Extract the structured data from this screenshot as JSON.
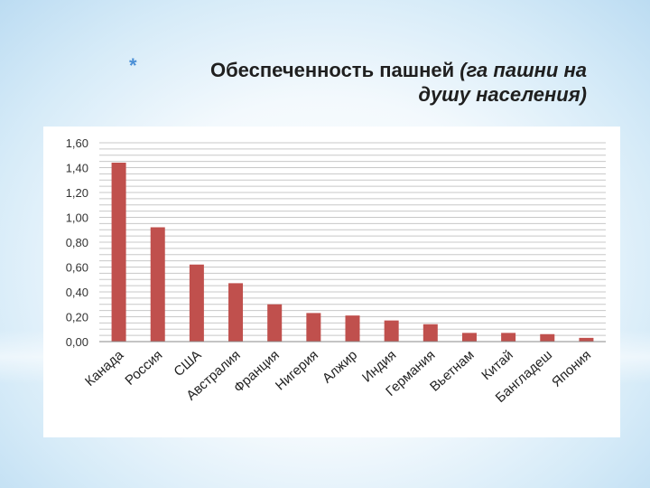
{
  "title": {
    "bullet": "*",
    "main": "Обеспеченность пашней",
    "paren": "(га пашни на душу населения)"
  },
  "colors": {
    "bar": "#c0504d",
    "grid": "#c8c8c8",
    "bullet": "#4a8fd6"
  },
  "chart_data": {
    "type": "bar",
    "title": "Обеспеченность пашней (га пашни на душу населения)",
    "categories": [
      "Канада",
      "Россия",
      "США",
      "Австралия",
      "Франция",
      "Нигерия",
      "Алжир",
      "Индия",
      "Германия",
      "Вьетнам",
      "Китай",
      "Бангладеш",
      "Япония"
    ],
    "values": [
      1.44,
      0.92,
      0.62,
      0.47,
      0.3,
      0.23,
      0.21,
      0.17,
      0.14,
      0.07,
      0.07,
      0.06,
      0.03
    ],
    "yticks": [
      "0,00",
      "0,20",
      "0,40",
      "0,60",
      "0,80",
      "1,00",
      "1,20",
      "1,40",
      "1,60"
    ],
    "ylim": [
      0,
      1.6
    ],
    "xlabel": "",
    "ylabel": "",
    "grid": true,
    "legend": "none"
  }
}
